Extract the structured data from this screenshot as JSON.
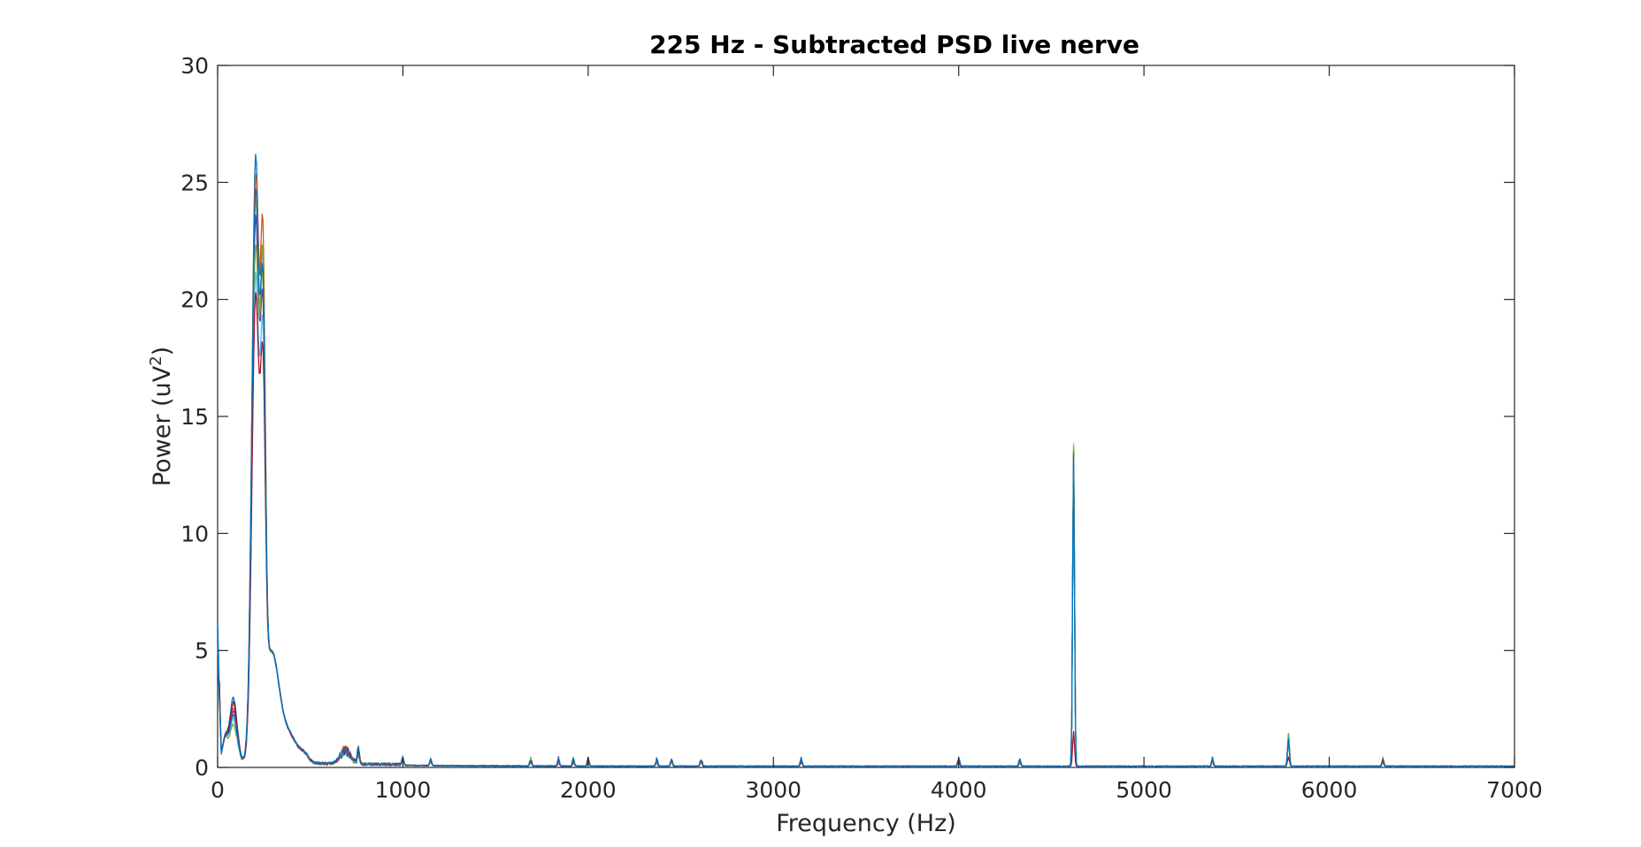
{
  "chart_data": {
    "type": "line",
    "title": "225 Hz - Subtracted PSD live nerve",
    "xlabel": "Frequency (Hz)",
    "ylabel_main": "Power (uV",
    "ylabel_sup": "2",
    "ylabel_close": ")",
    "xlim": [
      0,
      7000
    ],
    "ylim": [
      0,
      30
    ],
    "xticks": [
      0,
      1000,
      2000,
      3000,
      4000,
      5000,
      6000,
      7000
    ],
    "yticks": [
      0,
      5,
      10,
      15,
      20,
      25,
      30
    ],
    "xtick_labels": [
      "0",
      "1000",
      "2000",
      "3000",
      "4000",
      "5000",
      "6000",
      "7000"
    ],
    "ytick_labels": [
      "0",
      "5",
      "10",
      "15",
      "20",
      "25",
      "30"
    ],
    "grid": false,
    "legend": "none",
    "series_colors": [
      "#0072BD",
      "#D95319",
      "#EDB120",
      "#7E2F8E",
      "#77AC30",
      "#4DBEEE",
      "#A2142F"
    ],
    "series": [
      {
        "peak1": 25.4,
        "peak2": 16.0,
        "spike4620": 13.7,
        "spike5780": 1.3,
        "p80": 2.7
      },
      {
        "peak1": 24.6,
        "peak2": 17.6,
        "spike4620": 13.5,
        "spike5780": 1.4,
        "p80": 2.3
      },
      {
        "peak1": 23.5,
        "peak2": 15.2,
        "spike4620": 13.8,
        "spike5780": 1.2,
        "p80": 1.9
      },
      {
        "peak1": 22.8,
        "peak2": 14.5,
        "spike4620": 13.2,
        "spike5780": 1.1,
        "p80": 2.1
      },
      {
        "peak1": 21.6,
        "peak2": 16.8,
        "spike4620": 13.6,
        "spike5780": 1.4,
        "p80": 1.6
      },
      {
        "peak1": 20.4,
        "peak2": 13.8,
        "spike4620": 12.9,
        "spike5780": 1.0,
        "p80": 1.8
      },
      {
        "peak1": 19.5,
        "peak2": 12.9,
        "spike4620": 1.5,
        "spike5780": 0.4,
        "p80": 2.5
      },
      {
        "peak1": 24.0,
        "peak2": 15.5,
        "spike4620": 13.4,
        "spike5780": 1.2,
        "p80": 2.0
      }
    ]
  }
}
